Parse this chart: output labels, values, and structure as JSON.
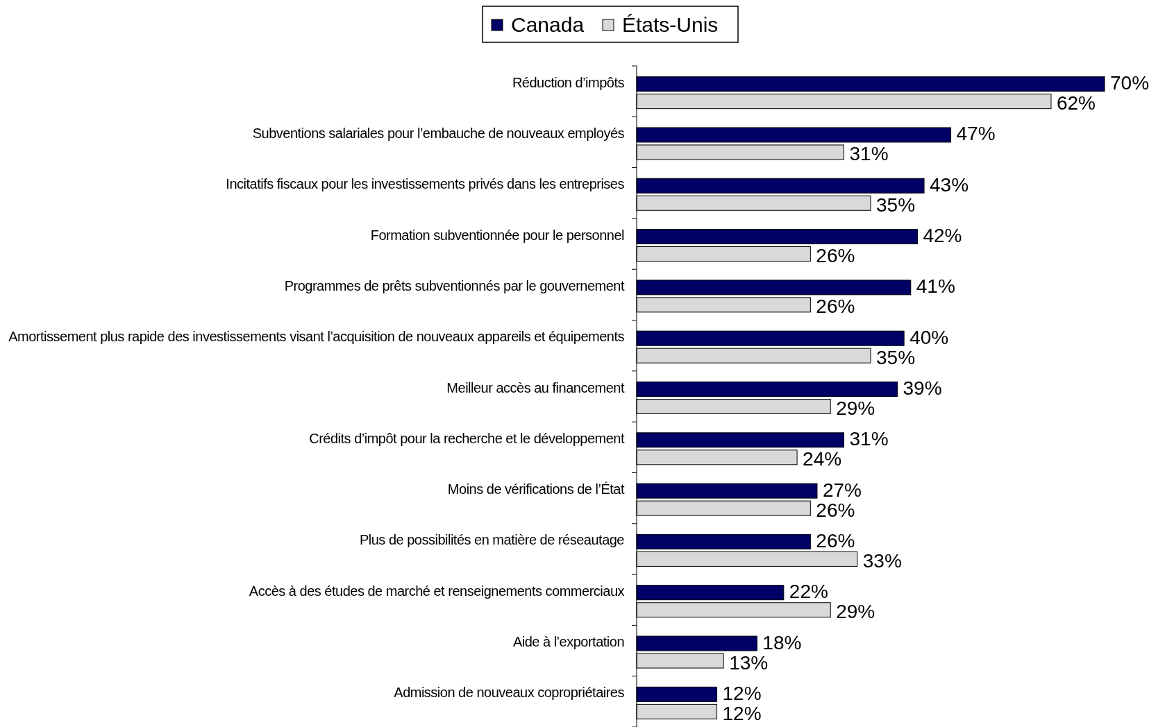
{
  "chart_data": {
    "type": "bar",
    "orientation": "horizontal",
    "categories": [
      "Réduction d’impôts",
      "Subventions salariales pour l’embauche de nouveaux employés",
      "Incitatifs fiscaux pour les investissements privés dans les entreprises",
      "Formation subventionnée pour le personnel",
      "Programmes de prêts subventionnés par le gouvernement",
      "Amortissement plus rapide des investissements visant l’acquisition de nouveaux appareils et équipements",
      "Meilleur accès au financement",
      "Crédits d’impôt pour la recherche et le développement",
      "Moins de vérifications de l’État",
      "Plus de possibilités en matière de réseautage",
      "Accès à des études de marché et renseignements commerciaux",
      "Aide à l’exportation",
      "Admission de nouveaux copropriétaires"
    ],
    "series": [
      {
        "name": "Canada",
        "color": "#000066",
        "values": [
          70,
          47,
          43,
          42,
          41,
          40,
          39,
          31,
          27,
          26,
          22,
          18,
          12
        ],
        "value_labels": [
          "70%",
          "47%",
          "43%",
          "42%",
          "41%",
          "40%",
          "39%",
          "31%",
          "27%",
          "26%",
          "22%",
          "18%",
          "12%"
        ]
      },
      {
        "name": "États-Unis",
        "color": "#d9d9d9",
        "values": [
          62,
          31,
          35,
          26,
          26,
          35,
          29,
          24,
          26,
          33,
          29,
          13,
          12
        ],
        "value_labels": [
          "62%",
          "31%",
          "35%",
          "26%",
          "26%",
          "35%",
          "29%",
          "24%",
          "26%",
          "33%",
          "29%",
          "13%",
          "12%"
        ]
      }
    ],
    "legend": "top"
  }
}
